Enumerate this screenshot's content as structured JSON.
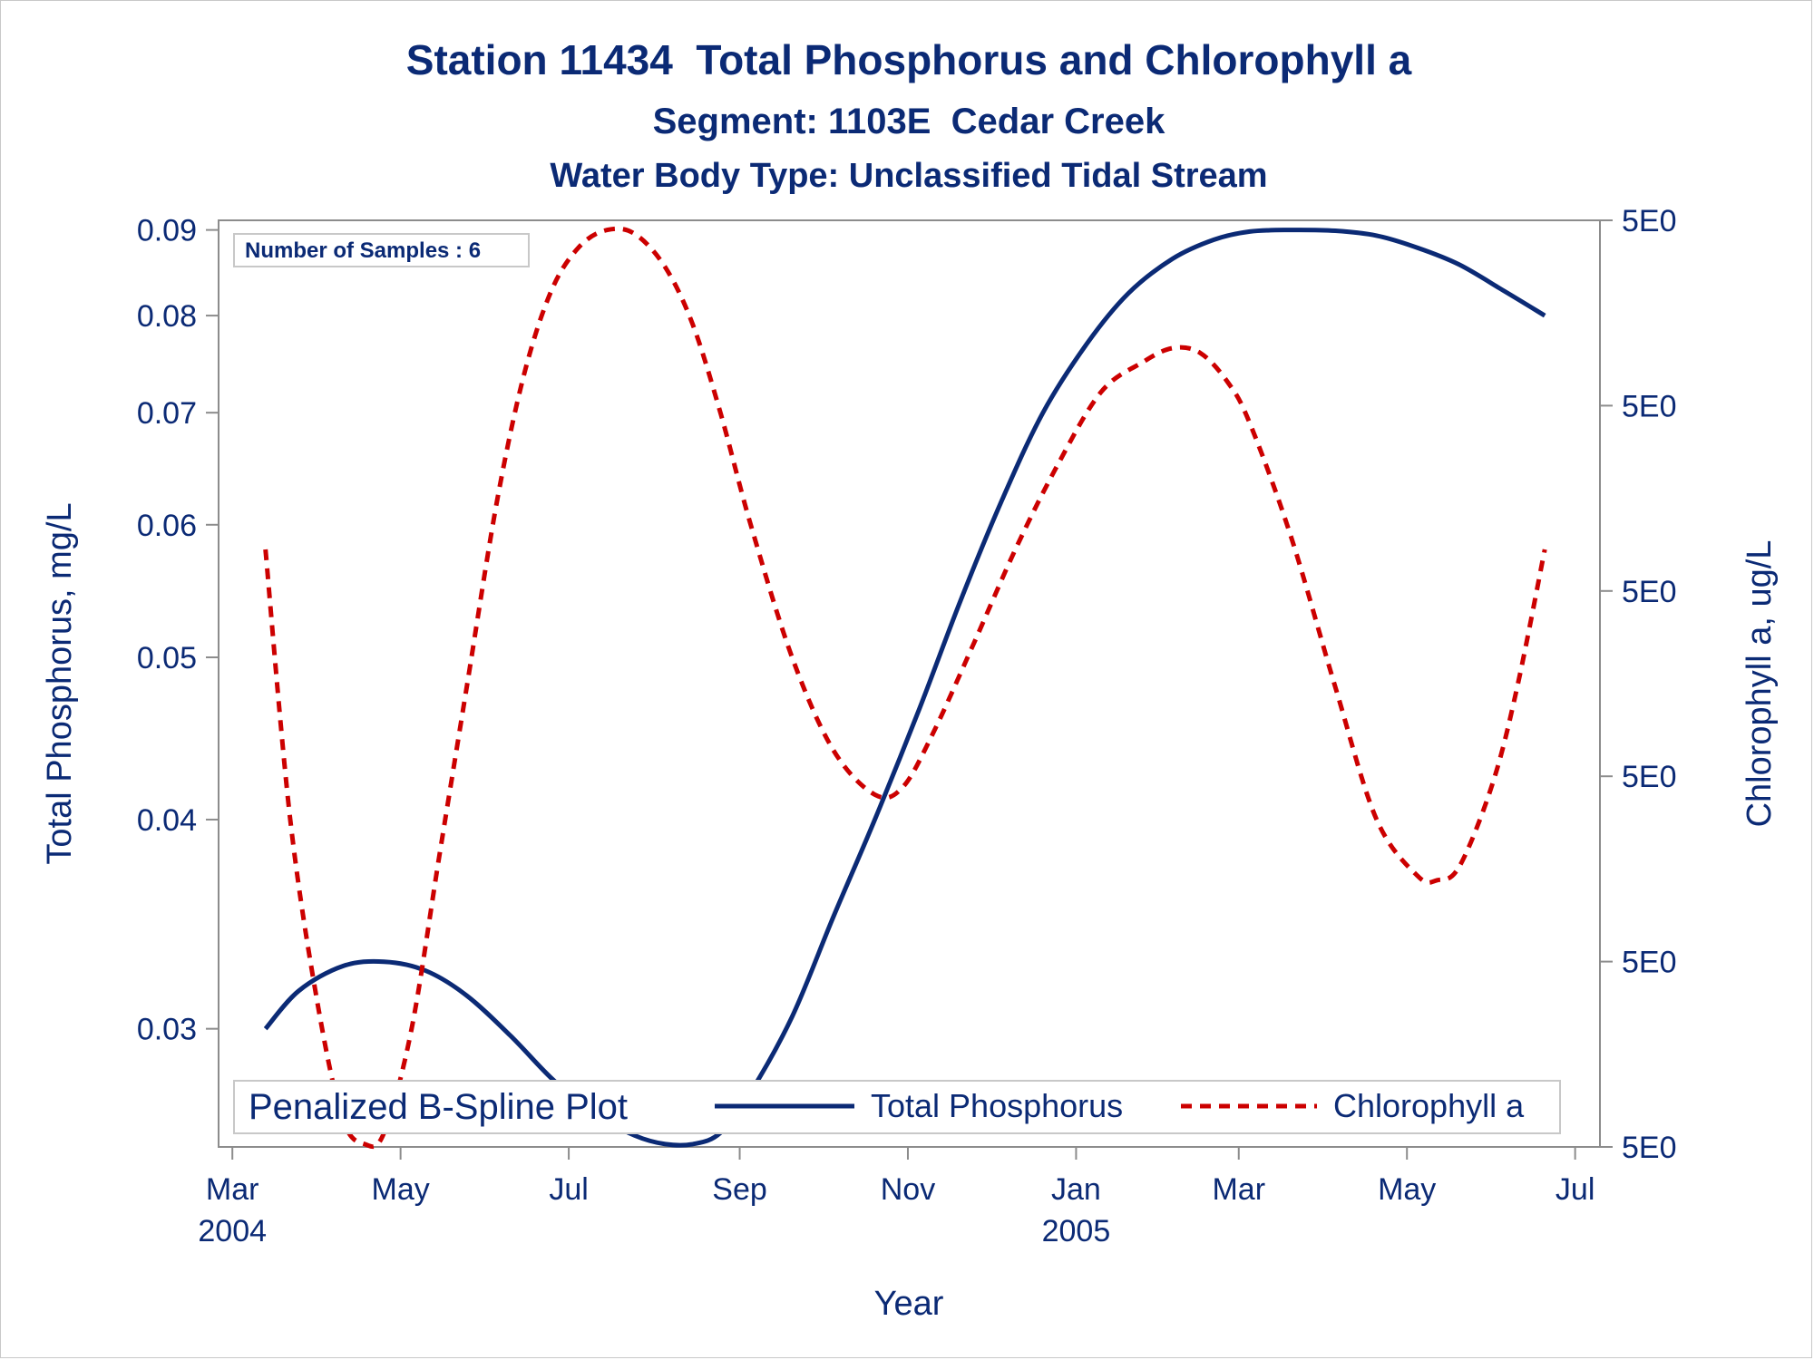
{
  "chart_data": {
    "type": "line",
    "title": "Station 11434  Total Phosphorus and Chlorophyll a",
    "subtitle": "Segment: 1103E  Cedar Creek",
    "subtitle2": "Water Body Type: Unclassified Tidal Stream",
    "xlabel": "Year",
    "ylabel": "Total Phosphorus, mg/L",
    "y2label": "Chlorophyll a, ug/L",
    "inset_label": "Number of Samples : 6",
    "legend": {
      "title": "Penalized B-Spline Plot",
      "placement": "bottom-inside",
      "entries": [
        "Total Phosphorus",
        "Chlorophyll a"
      ]
    },
    "x_ticks": [
      {
        "date": "2004-03-01",
        "label": "Mar",
        "year": "2004"
      },
      {
        "date": "2004-05-01",
        "label": "May",
        "year": ""
      },
      {
        "date": "2004-07-01",
        "label": "Jul",
        "year": ""
      },
      {
        "date": "2004-09-01",
        "label": "Sep",
        "year": ""
      },
      {
        "date": "2004-11-01",
        "label": "Nov",
        "year": ""
      },
      {
        "date": "2005-01-01",
        "label": "Jan",
        "year": "2005"
      },
      {
        "date": "2005-03-01",
        "label": "Mar",
        "year": ""
      },
      {
        "date": "2005-05-01",
        "label": "May",
        "year": ""
      },
      {
        "date": "2005-07-01",
        "label": "Jul",
        "year": ""
      }
    ],
    "xlim": [
      "2004-02-25",
      "2005-07-10"
    ],
    "y_scale": "log",
    "ylim": [
      0.0255,
      0.0912
    ],
    "y_ticks": [
      0.03,
      0.04,
      0.05,
      0.06,
      0.07,
      0.08,
      0.09
    ],
    "y2_ticks": [
      "5E0",
      "5E0",
      "5E0",
      "5E0",
      "5E0",
      "5E0"
    ],
    "series": [
      {
        "name": "Total Phosphorus",
        "axis": "left",
        "color": "#0b2a75",
        "dash": "solid",
        "x": [
          "2004-03-13",
          "2004-03-25",
          "2004-04-10",
          "2004-04-25",
          "2004-05-10",
          "2004-05-25",
          "2004-06-10",
          "2004-06-25",
          "2004-07-10",
          "2004-07-25",
          "2004-08-05",
          "2004-08-15",
          "2004-08-25",
          "2004-09-05",
          "2004-09-20",
          "2004-10-05",
          "2004-10-20",
          "2004-11-05",
          "2004-11-20",
          "2004-12-05",
          "2004-12-20",
          "2005-01-05",
          "2005-01-20",
          "2005-02-05",
          "2005-02-20",
          "2005-03-05",
          "2005-03-20",
          "2005-04-05",
          "2005-04-20",
          "2005-05-05",
          "2005-05-20",
          "2005-06-05",
          "2005-06-20"
        ],
        "y": [
          0.03,
          0.0316,
          0.0327,
          0.0329,
          0.0325,
          0.0314,
          0.0297,
          0.028,
          0.0267,
          0.0259,
          0.0256,
          0.0256,
          0.026,
          0.0275,
          0.0305,
          0.035,
          0.04,
          0.0465,
          0.054,
          0.062,
          0.07,
          0.077,
          0.0825,
          0.0865,
          0.0888,
          0.0898,
          0.09,
          0.0899,
          0.0893,
          0.0878,
          0.0858,
          0.0828,
          0.08
        ]
      },
      {
        "name": "Chlorophyll a",
        "axis": "right",
        "color": "#cc0000",
        "dash": "dashed",
        "x": [
          "2004-03-13",
          "2004-03-22",
          "2004-04-01",
          "2004-04-10",
          "2004-04-18",
          "2004-04-25",
          "2004-05-05",
          "2004-05-15",
          "2004-05-25",
          "2004-06-05",
          "2004-06-15",
          "2004-06-25",
          "2004-07-05",
          "2004-07-15",
          "2004-07-25",
          "2004-08-05",
          "2004-08-15",
          "2004-08-25",
          "2004-09-05",
          "2004-09-20",
          "2004-10-05",
          "2004-10-20",
          "2004-10-30",
          "2004-11-10",
          "2004-11-25",
          "2004-12-10",
          "2004-12-25",
          "2005-01-10",
          "2005-01-25",
          "2005-02-05",
          "2005-02-15",
          "2005-02-25",
          "2005-03-05",
          "2005-03-20",
          "2005-04-05",
          "2005-04-20",
          "2005-05-05",
          "2005-05-12",
          "2005-05-20",
          "2005-06-01",
          "2005-06-10",
          "2005-06-20"
        ],
        "y": [
          0.058,
          0.04,
          0.031,
          0.0265,
          0.0256,
          0.026,
          0.03,
          0.038,
          0.048,
          0.062,
          0.074,
          0.083,
          0.088,
          0.09,
          0.0895,
          0.0855,
          0.079,
          0.07,
          0.06,
          0.05,
          0.044,
          0.0414,
          0.0418,
          0.045,
          0.051,
          0.058,
          0.065,
          0.072,
          0.075,
          0.0765,
          0.076,
          0.073,
          0.069,
          0.059,
          0.048,
          0.04,
          0.037,
          0.0368,
          0.0375,
          0.042,
          0.048,
          0.058
        ]
      }
    ]
  }
}
